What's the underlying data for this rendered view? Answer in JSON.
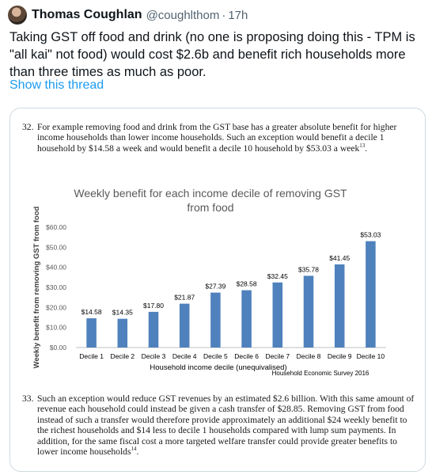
{
  "tweet": {
    "author_name": "Thomas Coughlan",
    "author_handle": "@coughlthom",
    "separator": "·",
    "time": "17h",
    "text": "Taking GST off food and drink (no one is proposing doing this - TPM is \"all kai\" not food) would cost $2.6b and benefit rich households more than three times as much as poor.",
    "show_thread": "Show this thread"
  },
  "document": {
    "para32": {
      "number": "32.",
      "text": "For example removing food and drink from the GST base has a greater absolute benefit for higher income households than lower income households. Such an exception would benefit a decile 1 household by $14.58 a week and would benefit a decile 10 household by $53.03 a week",
      "footnote": "13",
      "tail": "."
    },
    "para33": {
      "number": "33.",
      "text": "Such an exception would reduce GST revenues by an estimated $2.6 billion. With this same amount of revenue each household could instead be given a cash transfer of $28.85. Removing GST from food instead of such a transfer would therefore provide approximately an additional $24 weekly benefit to the richest households and $14 less to decile 1 households compared with lump sum payments. In addition, for the same fiscal cost a more targeted welfare transfer could provide greater benefits to lower income households",
      "footnote": "14",
      "tail": "."
    }
  },
  "chart_data": {
    "type": "bar",
    "title_line1": "Weekly benefit for each income decile of removing GST",
    "title_line2": "from food",
    "xlabel": "Household income decile (unequivalised)",
    "ylabel": "Weekly benefit from removing GST from food",
    "source": "Household Economic Survey 2016",
    "categories": [
      "Decile 1",
      "Decile 2",
      "Decile 3",
      "Decile 4",
      "Decile 5",
      "Decile 6",
      "Decile 7",
      "Decile 8",
      "Decile 9",
      "Decile 10"
    ],
    "values": [
      14.58,
      14.35,
      17.8,
      21.87,
      27.39,
      28.58,
      32.45,
      35.78,
      41.45,
      53.03
    ],
    "value_labels": [
      "$14.58",
      "$14.35",
      "$17.80",
      "$21.87",
      "$27.39",
      "$28.58",
      "$32.45",
      "$35.78",
      "$41.45",
      "$53.03"
    ],
    "yticks": [
      0,
      10,
      20,
      30,
      40,
      50,
      60
    ],
    "ytick_labels": [
      "$0.00",
      "$10.00",
      "$20.00",
      "$30.00",
      "$40.00",
      "$50.00",
      "$60.00"
    ],
    "ylim": [
      0,
      60
    ],
    "bar_color": "#4f81bd",
    "grid": false
  }
}
